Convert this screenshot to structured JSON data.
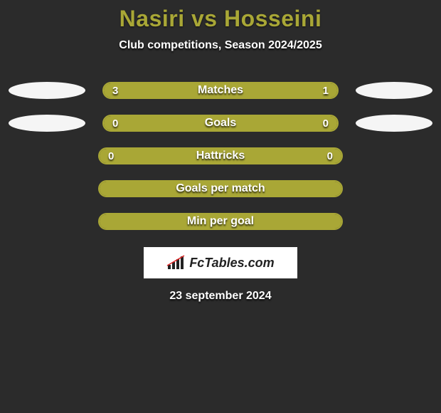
{
  "title": "Nasiri vs Hosseini",
  "subtitle": "Club competitions, Season 2024/2025",
  "date": "23 september 2024",
  "logo_text": "FcTables.com",
  "colors": {
    "background": "#2b2b2b",
    "accent": "#a9a736",
    "oval": "#f5f5f5",
    "text": "#ffffff"
  },
  "rows": [
    {
      "label": "Matches",
      "left_value": "3",
      "right_value": "1",
      "left_fill_pct": 75,
      "right_fill_pct": 25,
      "show_ovals": true,
      "oval_color": "#f5f5f5"
    },
    {
      "label": "Goals",
      "left_value": "0",
      "right_value": "0",
      "left_fill_pct": 100,
      "right_fill_pct": 0,
      "show_ovals": true,
      "oval_color": "#f5f5f5",
      "full_fill": true
    },
    {
      "label": "Hattricks",
      "left_value": "0",
      "right_value": "0",
      "left_fill_pct": 100,
      "right_fill_pct": 0,
      "show_ovals": false,
      "full_fill": true
    },
    {
      "label": "Goals per match",
      "left_value": "",
      "right_value": "",
      "left_fill_pct": 100,
      "right_fill_pct": 0,
      "show_ovals": false,
      "full_fill": true
    },
    {
      "label": "Min per goal",
      "left_value": "",
      "right_value": "",
      "left_fill_pct": 100,
      "right_fill_pct": 0,
      "show_ovals": false,
      "full_fill": true
    }
  ]
}
